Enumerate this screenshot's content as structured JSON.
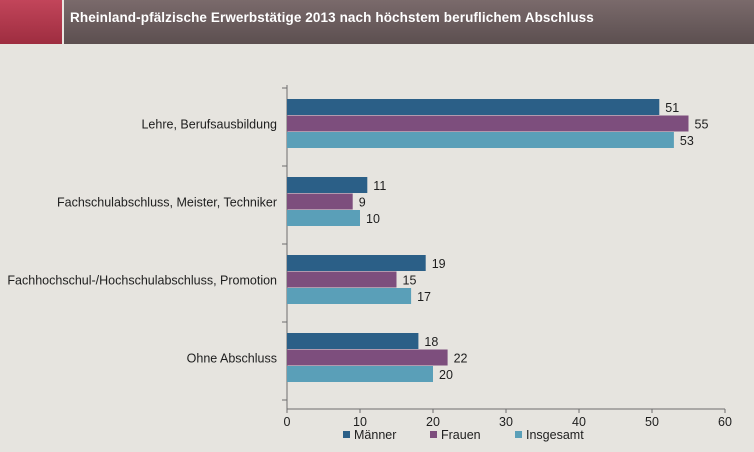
{
  "header": {
    "title": "Rheinland-pfälzische Erwerbstätige 2013 nach höchstem beruflichem Abschluss"
  },
  "colors": {
    "header_bg": "#6b5d5e",
    "header_accent": "#b03a4e",
    "background": "#e6e4df"
  },
  "chart_data": {
    "type": "bar",
    "orientation": "horizontal",
    "categories": [
      "Lehre, Berufsausbildung",
      "Fachschulabschluss, Meister, Techniker",
      "Fachhochschul-/Hochschulabschluss, Promotion",
      "Ohne Abschluss"
    ],
    "series": [
      {
        "name": "Männer",
        "color": "#2b5f87",
        "values": [
          51,
          11,
          19,
          18
        ]
      },
      {
        "name": "Frauen",
        "color": "#7d4e7d",
        "values": [
          55,
          9,
          15,
          22
        ]
      },
      {
        "name": "Insgesamt",
        "color": "#5a9fb8",
        "values": [
          53,
          10,
          17,
          20
        ]
      }
    ],
    "x_ticks": [
      0,
      10,
      20,
      30,
      40,
      50,
      60
    ],
    "xlim": [
      0,
      60
    ],
    "grid": false,
    "data_labels": true,
    "legend_position": "bottom"
  }
}
